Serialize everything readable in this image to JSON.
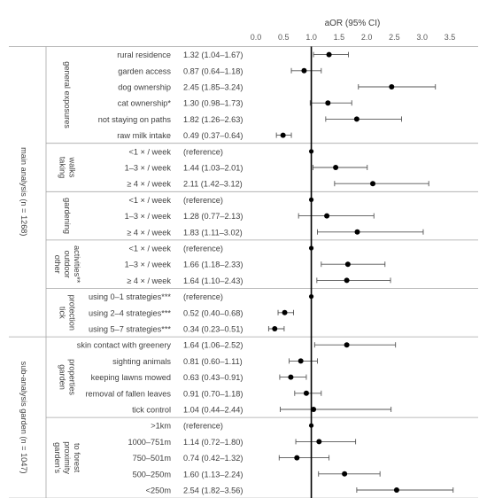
{
  "chart_data": {
    "type": "forest",
    "title": "",
    "header": "aOR (95% CI)",
    "xlim": [
      0,
      3.5
    ],
    "x_ticks": [
      "0.0",
      "0.5",
      "1.0",
      "1.5",
      "2.0",
      "2.5",
      "3.0",
      "3.5"
    ],
    "reference_line": 1.0,
    "analyses": [
      {
        "label": "main analysis (n = 1268)",
        "groups": [
          "general exposures",
          "taking walks",
          "gardening",
          "other outdoor activities**",
          "tick protection"
        ]
      },
      {
        "label": "sub-analysis garden (n = 1047)",
        "groups": [
          "garden properties",
          "garden's proximity to forest"
        ]
      }
    ],
    "groups": [
      {
        "lines": [
          "general exposures"
        ],
        "rows": [
          {
            "label": "rural residence",
            "ci_text": "1.32 (1.04–1.67)",
            "or": 1.32,
            "lo": 1.04,
            "hi": 1.67
          },
          {
            "label": "garden access",
            "ci_text": "0.87 (0.64–1.18)",
            "or": 0.87,
            "lo": 0.64,
            "hi": 1.18
          },
          {
            "label": "dog ownership",
            "ci_text": "2.45 (1.85–3.24)",
            "or": 2.45,
            "lo": 1.85,
            "hi": 3.24
          },
          {
            "label": "cat ownership*",
            "ci_text": "1.30 (0.98–1.73)",
            "or": 1.3,
            "lo": 0.98,
            "hi": 1.73
          },
          {
            "label": "not staying on paths",
            "ci_text": "1.82 (1.26–2.63)",
            "or": 1.82,
            "lo": 1.26,
            "hi": 2.63
          },
          {
            "label": "raw milk intake",
            "ci_text": "0.49 (0.37–0.64)",
            "or": 0.49,
            "lo": 0.37,
            "hi": 0.64
          }
        ]
      },
      {
        "lines": [
          "taking",
          "walks"
        ],
        "rows": [
          {
            "label": "<1 × / week",
            "ci_text": "(reference)",
            "or": 1.0,
            "lo": null,
            "hi": null
          },
          {
            "label": "1–3 × / week",
            "ci_text": "1.44 (1.03–2.01)",
            "or": 1.44,
            "lo": 1.03,
            "hi": 2.01
          },
          {
            "label": "≥ 4 × / week",
            "ci_text": "2.11 (1.42–3.12)",
            "or": 2.11,
            "lo": 1.42,
            "hi": 3.12
          }
        ]
      },
      {
        "lines": [
          "gardening"
        ],
        "rows": [
          {
            "label": "<1 × / week",
            "ci_text": "(reference)",
            "or": 1.0,
            "lo": null,
            "hi": null
          },
          {
            "label": "1–3 × / week",
            "ci_text": "1.28 (0.77–2.13)",
            "or": 1.28,
            "lo": 0.77,
            "hi": 2.13
          },
          {
            "label": "≥ 4 × / week",
            "ci_text": "1.83 (1.11–3.02)",
            "or": 1.83,
            "lo": 1.11,
            "hi": 3.02
          }
        ]
      },
      {
        "lines": [
          "other",
          "outdoor",
          "activities**"
        ],
        "rows": [
          {
            "label": "<1 × / week",
            "ci_text": "(reference)",
            "or": 1.0,
            "lo": null,
            "hi": null
          },
          {
            "label": "1–3 × / week",
            "ci_text": "1.66 (1.18–2.33)",
            "or": 1.66,
            "lo": 1.18,
            "hi": 2.33
          },
          {
            "label": "≥ 4 × / week",
            "ci_text": "1.64 (1.10–2.43)",
            "or": 1.64,
            "lo": 1.1,
            "hi": 2.43
          }
        ]
      },
      {
        "lines": [
          "tick",
          "protection"
        ],
        "rows": [
          {
            "label": "using 0–1 strategies***",
            "ci_text": "(reference)",
            "or": 1.0,
            "lo": null,
            "hi": null
          },
          {
            "label": "using 2–4 strategies***",
            "ci_text": "0.52 (0.40–0.68)",
            "or": 0.52,
            "lo": 0.4,
            "hi": 0.68
          },
          {
            "label": "using 5–7 strategies***",
            "ci_text": "0.34 (0.23–0.51)",
            "or": 0.34,
            "lo": 0.23,
            "hi": 0.51
          }
        ]
      },
      {
        "lines": [
          "garden",
          "properties"
        ],
        "rows": [
          {
            "label": "skin contact with greenery",
            "ci_text": "1.64 (1.06–2.52)",
            "or": 1.64,
            "lo": 1.06,
            "hi": 2.52
          },
          {
            "label": "sighting animals",
            "ci_text": "0.81 (0.60–1.11)",
            "or": 0.81,
            "lo": 0.6,
            "hi": 1.11
          },
          {
            "label": "keeping lawns mowed",
            "ci_text": "0.63 (0.43–0.91)",
            "or": 0.63,
            "lo": 0.43,
            "hi": 0.91
          },
          {
            "label": "removal of fallen leaves",
            "ci_text": "0.91 (0.70–1.18)",
            "or": 0.91,
            "lo": 0.7,
            "hi": 1.18
          },
          {
            "label": "tick control",
            "ci_text": "1.04 (0.44–2.44)",
            "or": 1.04,
            "lo": 0.44,
            "hi": 2.44
          }
        ]
      },
      {
        "lines": [
          "garden's",
          "proximity",
          "to forest"
        ],
        "rows": [
          {
            "label": ">1km",
            "ci_text": "(reference)",
            "or": 1.0,
            "lo": null,
            "hi": null
          },
          {
            "label": "1000–751m",
            "ci_text": "1.14 (0.72–1.80)",
            "or": 1.14,
            "lo": 0.72,
            "hi": 1.8
          },
          {
            "label": "750–501m",
            "ci_text": "0.74 (0.42–1.32)",
            "or": 0.74,
            "lo": 0.42,
            "hi": 1.32
          },
          {
            "label": "500–250m",
            "ci_text": "1.60 (1.13–2.24)",
            "or": 1.6,
            "lo": 1.13,
            "hi": 2.24
          },
          {
            "label": "<250m",
            "ci_text": "2.54 (1.82–3.56)",
            "or": 2.54,
            "lo": 1.82,
            "hi": 3.56
          }
        ]
      }
    ]
  }
}
